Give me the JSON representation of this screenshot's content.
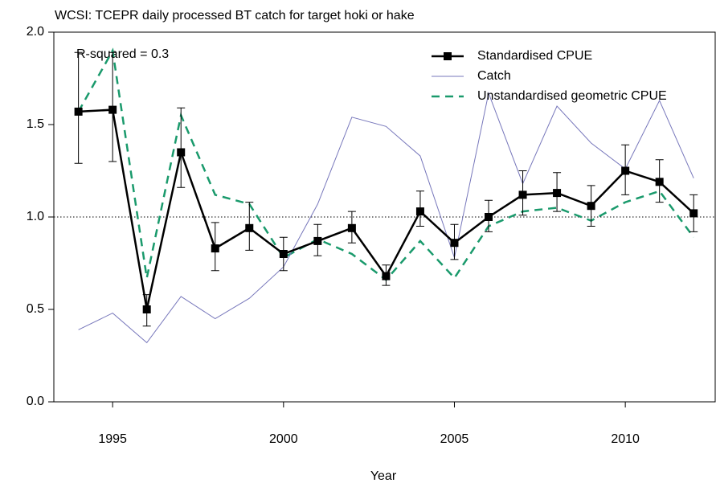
{
  "chart_data": {
    "type": "line",
    "title": "WCSI: TCEPR daily processed BT catch for target hoki or hake",
    "annotation": "R-squared = 0.3",
    "x_label": "Year",
    "x": [
      1994,
      1995,
      1996,
      1997,
      1998,
      1999,
      2000,
      2001,
      2002,
      2003,
      2004,
      2005,
      2006,
      2007,
      2008,
      2009,
      2010,
      2011,
      2012
    ],
    "xlim": [
      1993.28,
      2012.63
    ],
    "xticks": [
      1995,
      2000,
      2005,
      2010
    ],
    "ylim": [
      0,
      2
    ],
    "yticks": [
      {
        "value": 0,
        "label": "0.0"
      },
      {
        "value": 0.5,
        "label": "0.5"
      },
      {
        "value": 1,
        "label": "1.0"
      },
      {
        "value": 1.5,
        "label": "1.5"
      },
      {
        "value": 2,
        "label": "2.0"
      }
    ],
    "reference_line": 1,
    "legend": "top-right",
    "series": [
      {
        "name": "Standardised CPUE",
        "color": "#000000",
        "marker": "square",
        "dash": false,
        "values": [
          1.57,
          1.58,
          0.5,
          1.35,
          0.83,
          0.94,
          0.8,
          0.87,
          0.94,
          0.68,
          1.03,
          0.86,
          1.0,
          1.12,
          1.13,
          1.06,
          1.25,
          1.19,
          1.02
        ],
        "lower": [
          1.29,
          1.3,
          0.41,
          1.16,
          0.71,
          0.82,
          0.71,
          0.79,
          0.86,
          0.63,
          0.95,
          0.77,
          0.92,
          1.01,
          1.03,
          0.95,
          1.12,
          1.08,
          0.92
        ],
        "upper": [
          1.89,
          1.89,
          0.58,
          1.59,
          0.97,
          1.08,
          0.89,
          0.96,
          1.03,
          0.74,
          1.14,
          0.96,
          1.09,
          1.25,
          1.24,
          1.17,
          1.39,
          1.31,
          1.12
        ]
      },
      {
        "name": "Catch",
        "color": "#7777bb",
        "dash": false,
        "values": [
          0.39,
          0.48,
          0.32,
          0.57,
          0.45,
          0.56,
          0.73,
          1.07,
          1.54,
          1.49,
          1.33,
          0.78,
          1.67,
          1.18,
          1.6,
          1.4,
          1.26,
          1.63,
          1.21
        ]
      },
      {
        "name": "Unstandardised geometric CPUE",
        "color": "#1a9a6c",
        "dash": true,
        "values": [
          1.57,
          1.9,
          0.67,
          1.55,
          1.12,
          1.07,
          0.78,
          0.88,
          0.8,
          0.66,
          0.87,
          0.67,
          0.95,
          1.03,
          1.05,
          0.98,
          1.08,
          1.14,
          0.89
        ]
      }
    ]
  }
}
